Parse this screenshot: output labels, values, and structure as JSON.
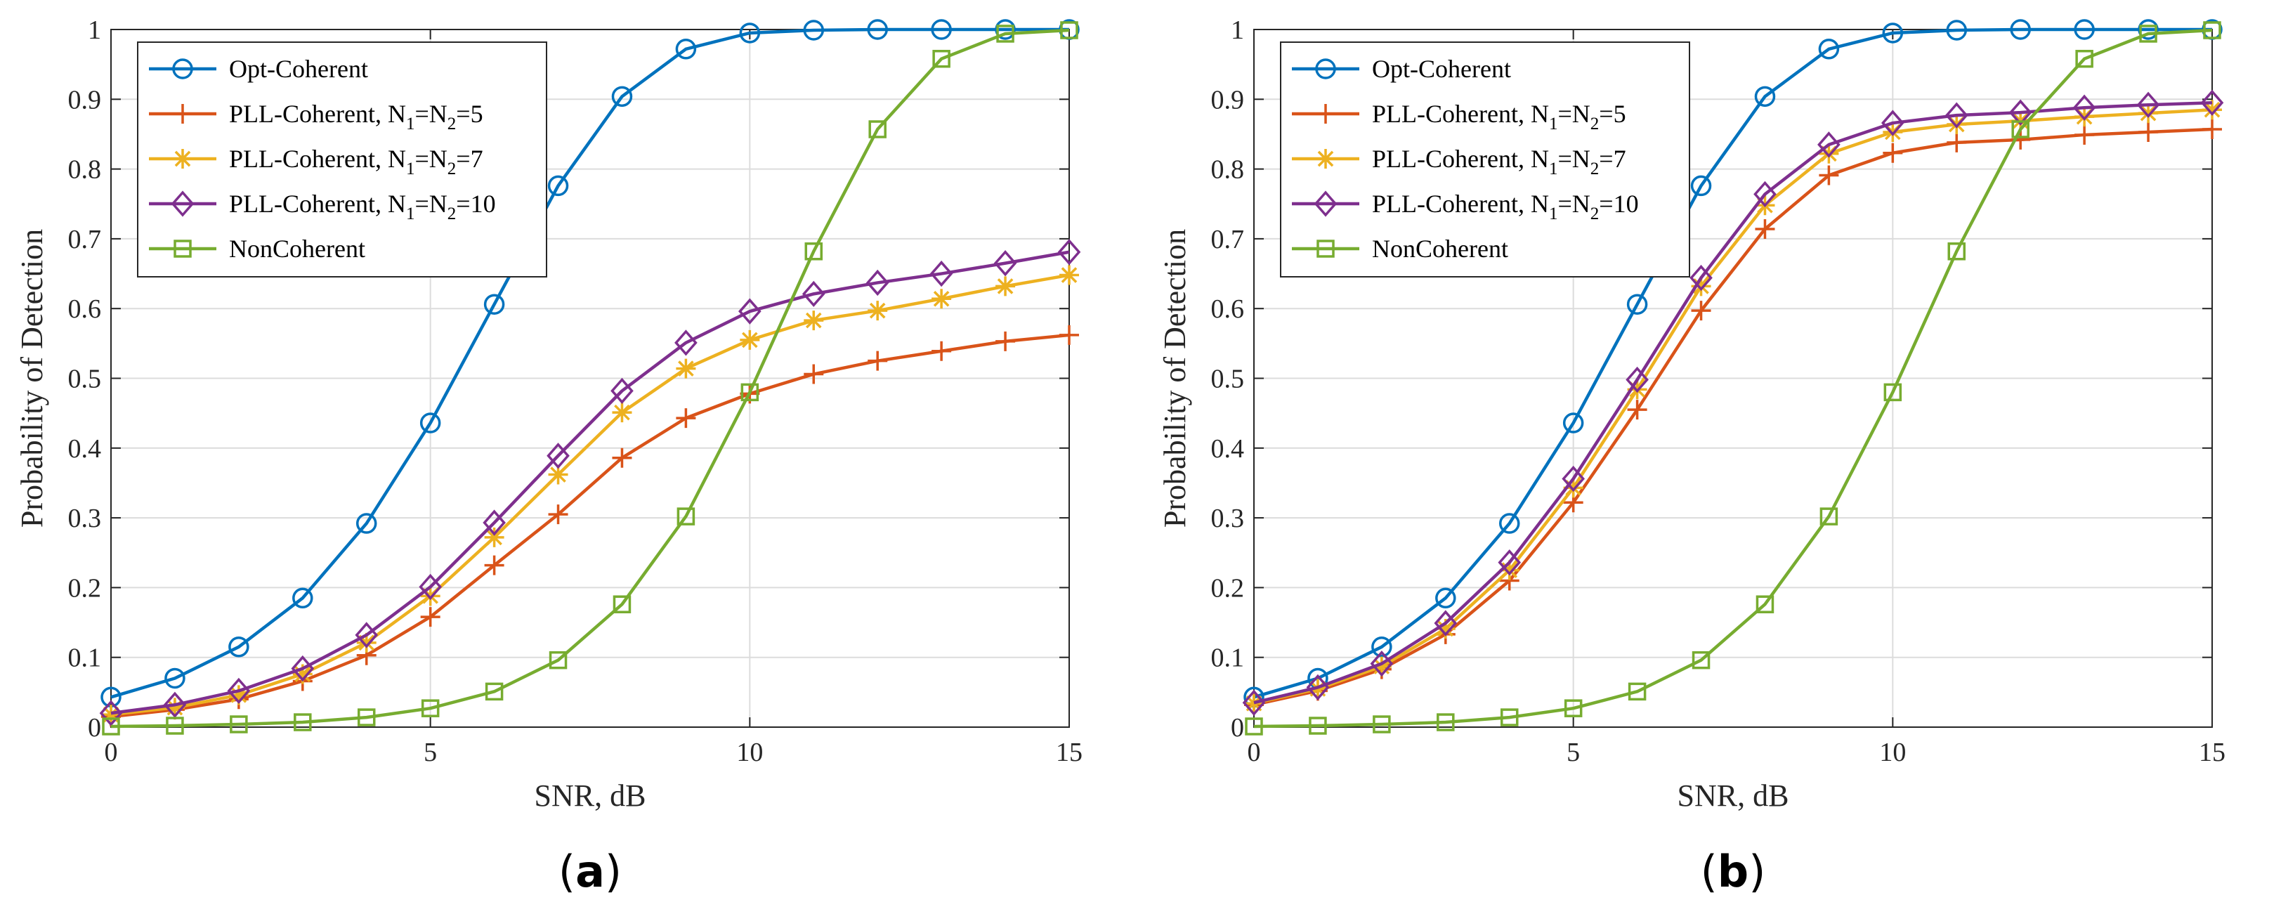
{
  "chart_data": [
    {
      "type": "line",
      "panel_label": "(a)",
      "panel_letter": "a",
      "xlabel": "SNR, dB",
      "ylabel": "Probability of Detection",
      "xlim": [
        0,
        15
      ],
      "ylim": [
        0,
        1
      ],
      "xticks": [
        0,
        5,
        10,
        15
      ],
      "yticks": [
        0,
        0.1,
        0.2,
        0.3,
        0.4,
        0.5,
        0.6,
        0.7,
        0.8,
        0.9,
        1
      ],
      "grid": true,
      "legend_position": "top-left",
      "x": [
        0,
        1,
        2,
        3,
        4,
        5,
        6,
        7,
        8,
        9,
        10,
        11,
        12,
        13,
        14,
        15
      ],
      "series": [
        {
          "name": "Opt-Coherent",
          "legend_main": "Opt-Coherent",
          "legend_parts": [],
          "color": "#0072BD",
          "marker": "circle",
          "values": [
            0.043,
            0.07,
            0.115,
            0.185,
            0.292,
            0.436,
            0.606,
            0.776,
            0.904,
            0.972,
            0.995,
            0.999,
            1.0,
            1.0,
            1.0,
            1.0
          ]
        },
        {
          "name": "PLL-Coherent, N1=N2=5",
          "legend_main": "PLL-Coherent, N",
          "legend_parts": [
            "1",
            "=N",
            "2",
            "=5"
          ],
          "color": "#D95319",
          "marker": "plus",
          "values": [
            0.015,
            0.025,
            0.04,
            0.066,
            0.103,
            0.158,
            0.232,
            0.305,
            0.386,
            0.443,
            0.478,
            0.506,
            0.525,
            0.539,
            0.553,
            0.562
          ]
        },
        {
          "name": "PLL-Coherent, N1=N2=7",
          "legend_main": "PLL-Coherent, N",
          "legend_parts": [
            "1",
            "=N",
            "2",
            "=7"
          ],
          "color": "#EDB120",
          "marker": "asterisk",
          "values": [
            0.018,
            0.028,
            0.046,
            0.076,
            0.121,
            0.188,
            0.272,
            0.362,
            0.451,
            0.514,
            0.555,
            0.583,
            0.597,
            0.614,
            0.632,
            0.648
          ]
        },
        {
          "name": "PLL-Coherent, N1=N2=10",
          "legend_main": "PLL-Coherent, N",
          "legend_parts": [
            "1",
            "=N",
            "2",
            "=10"
          ],
          "color": "#7E2F8E",
          "marker": "diamond",
          "values": [
            0.02,
            0.032,
            0.052,
            0.084,
            0.132,
            0.201,
            0.293,
            0.389,
            0.482,
            0.551,
            0.596,
            0.621,
            0.637,
            0.65,
            0.665,
            0.681
          ]
        },
        {
          "name": "NonCoherent",
          "legend_main": "NonCoherent",
          "legend_parts": [],
          "color": "#77AC30",
          "marker": "square",
          "values": [
            0.001,
            0.002,
            0.004,
            0.007,
            0.014,
            0.027,
            0.051,
            0.096,
            0.176,
            0.302,
            0.48,
            0.682,
            0.857,
            0.958,
            0.994,
            0.999
          ]
        }
      ]
    },
    {
      "type": "line",
      "panel_label": "(b)",
      "panel_letter": "b",
      "xlabel": "SNR, dB",
      "ylabel": "Probability of Detection",
      "xlim": [
        0,
        15
      ],
      "ylim": [
        0,
        1
      ],
      "xticks": [
        0,
        5,
        10,
        15
      ],
      "yticks": [
        0,
        0.1,
        0.2,
        0.3,
        0.4,
        0.5,
        0.6,
        0.7,
        0.8,
        0.9,
        1
      ],
      "grid": true,
      "legend_position": "top-left",
      "x": [
        0,
        1,
        2,
        3,
        4,
        5,
        6,
        7,
        8,
        9,
        10,
        11,
        12,
        13,
        14,
        15
      ],
      "series": [
        {
          "name": "Opt-Coherent",
          "legend_main": "Opt-Coherent",
          "legend_parts": [],
          "color": "#0072BD",
          "marker": "circle",
          "values": [
            0.043,
            0.07,
            0.115,
            0.185,
            0.292,
            0.436,
            0.606,
            0.776,
            0.904,
            0.972,
            0.995,
            0.999,
            1.0,
            1.0,
            1.0,
            1.0
          ]
        },
        {
          "name": "PLL-Coherent, N1=N2=5",
          "legend_main": "PLL-Coherent, N",
          "legend_parts": [
            "1",
            "=N",
            "2",
            "=5"
          ],
          "color": "#D95319",
          "marker": "plus",
          "values": [
            0.032,
            0.052,
            0.083,
            0.133,
            0.21,
            0.322,
            0.455,
            0.597,
            0.714,
            0.791,
            0.823,
            0.838,
            0.842,
            0.849,
            0.853,
            0.857
          ]
        },
        {
          "name": "PLL-Coherent, N1=N2=7",
          "legend_main": "PLL-Coherent, N",
          "legend_parts": [
            "1",
            "=N",
            "2",
            "=7"
          ],
          "color": "#EDB120",
          "marker": "asterisk",
          "values": [
            0.034,
            0.055,
            0.087,
            0.141,
            0.225,
            0.343,
            0.484,
            0.632,
            0.748,
            0.822,
            0.853,
            0.864,
            0.869,
            0.875,
            0.88,
            0.885
          ]
        },
        {
          "name": "PLL-Coherent, N1=N2=10",
          "legend_main": "PLL-Coherent, N",
          "legend_parts": [
            "1",
            "=N",
            "2",
            "=10"
          ],
          "color": "#7E2F8E",
          "marker": "diamond",
          "values": [
            0.035,
            0.057,
            0.091,
            0.149,
            0.236,
            0.356,
            0.498,
            0.644,
            0.764,
            0.835,
            0.866,
            0.877,
            0.881,
            0.888,
            0.892,
            0.895
          ]
        },
        {
          "name": "NonCoherent",
          "legend_main": "NonCoherent",
          "legend_parts": [],
          "color": "#77AC30",
          "marker": "square",
          "values": [
            0.001,
            0.002,
            0.004,
            0.007,
            0.014,
            0.027,
            0.051,
            0.096,
            0.176,
            0.302,
            0.48,
            0.682,
            0.857,
            0.958,
            0.994,
            0.999
          ]
        }
      ]
    }
  ]
}
